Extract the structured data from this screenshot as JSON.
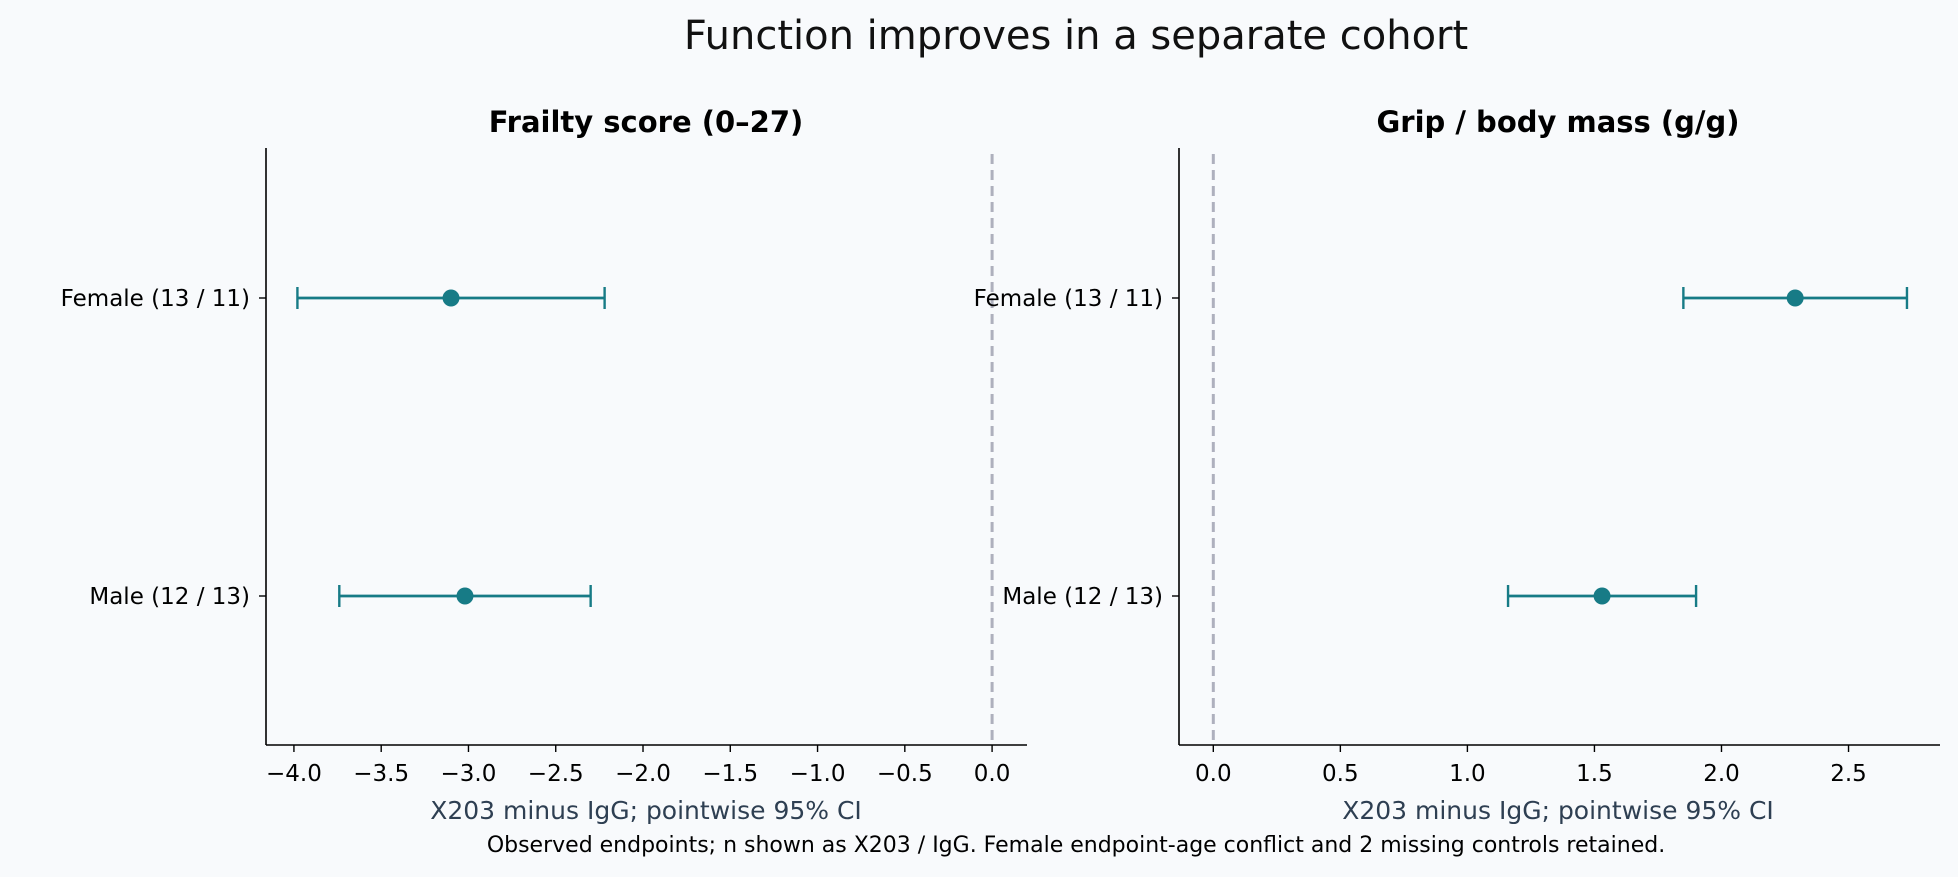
{
  "figure": {
    "title": "Function improves in a separate cohort",
    "caption": "Observed endpoints; n shown as X203 / IgG. Female endpoint-age conflict and 2 missing controls retained."
  },
  "colors": {
    "background": "#f8fafc",
    "marker": "#177b86",
    "reference_line": "#aeb0bd",
    "axis_label": "#2e3f52"
  },
  "chart_data": [
    {
      "type": "scatter",
      "subtype": "forest-plot",
      "title": "Frailty score (0–27)",
      "xlabel": "X203 minus IgG; pointwise 95% CI",
      "ylabel": "",
      "xlim": [
        -4.16,
        0.2
      ],
      "xticks": [
        -4.0,
        -3.5,
        -3.0,
        -2.5,
        -2.0,
        -1.5,
        -1.0,
        -0.5,
        0.0
      ],
      "xtick_labels": [
        "−4.0",
        "−3.5",
        "−3.0",
        "−2.5",
        "−2.0",
        "−1.5",
        "−1.0",
        "−0.5",
        "0.0"
      ],
      "reference_line": 0.0,
      "grid": false,
      "legend": "none",
      "categories": [
        "Female (13 / 11)",
        "Male (12 / 13)"
      ],
      "estimates": [
        -3.1,
        -3.02
      ],
      "ci_lower": [
        -3.98,
        -3.74
      ],
      "ci_upper": [
        -2.22,
        -2.3
      ]
    },
    {
      "type": "scatter",
      "subtype": "forest-plot",
      "title": "Grip / body mass (g/g)",
      "xlabel": "X203 minus IgG; pointwise 95% CI",
      "ylabel": "",
      "xlim": [
        -0.135,
        2.86
      ],
      "xticks": [
        0.0,
        0.5,
        1.0,
        1.5,
        2.0,
        2.5
      ],
      "xtick_labels": [
        "0.0",
        "0.5",
        "1.0",
        "1.5",
        "2.0",
        "2.5"
      ],
      "reference_line": 0.0,
      "grid": false,
      "legend": "none",
      "categories": [
        "Female (13 / 11)",
        "Male (12 / 13)"
      ],
      "estimates": [
        2.29,
        1.53
      ],
      "ci_lower": [
        1.85,
        1.16
      ],
      "ci_upper": [
        2.73,
        1.9
      ]
    }
  ]
}
